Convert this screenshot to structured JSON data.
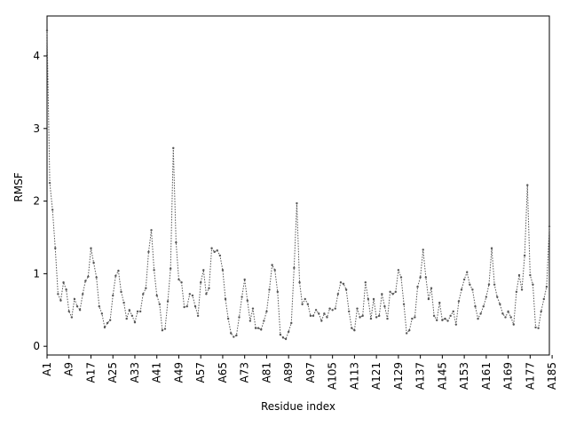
{
  "chart_data": {
    "type": "line",
    "title": "",
    "xlabel": "Residue index",
    "ylabel": "RMSF",
    "ylim": [
      -0.12,
      4.55
    ],
    "yticks": [
      0,
      1,
      2,
      3,
      4
    ],
    "xtick_labels": [
      "A1",
      "A9",
      "A17",
      "A25",
      "A33",
      "A41",
      "A49",
      "A57",
      "A65",
      "A73",
      "A81",
      "A89",
      "A97",
      "A105",
      "A113",
      "A121",
      "A129",
      "A137",
      "A145",
      "A153",
      "A161",
      "A169",
      "A177",
      "A185"
    ],
    "xtick_step": 8,
    "series_color": "#555555",
    "grid": false,
    "legend": "none",
    "series": [
      {
        "values": [
          4.35,
          2.25,
          1.88,
          1.35,
          0.72,
          0.63,
          0.88,
          0.78,
          0.48,
          0.4,
          0.65,
          0.55,
          0.5,
          0.72,
          0.9,
          0.96,
          1.35,
          1.15,
          0.95,
          0.55,
          0.45,
          0.26,
          0.32,
          0.36,
          0.7,
          0.97,
          1.04,
          0.75,
          0.6,
          0.38,
          0.5,
          0.42,
          0.33,
          0.48,
          0.48,
          0.72,
          0.8,
          1.3,
          1.6,
          1.05,
          0.7,
          0.58,
          0.22,
          0.24,
          0.62,
          1.07,
          2.73,
          1.43,
          0.92,
          0.88,
          0.54,
          0.55,
          0.72,
          0.7,
          0.55,
          0.42,
          0.88,
          1.05,
          0.72,
          0.8,
          1.35,
          1.3,
          1.32,
          1.25,
          1.05,
          0.65,
          0.38,
          0.18,
          0.13,
          0.15,
          0.4,
          0.68,
          0.92,
          0.63,
          0.35,
          0.52,
          0.25,
          0.25,
          0.23,
          0.35,
          0.48,
          0.78,
          1.12,
          1.05,
          0.75,
          0.16,
          0.12,
          0.1,
          0.2,
          0.32,
          1.08,
          1.97,
          0.88,
          0.58,
          0.65,
          0.58,
          0.42,
          0.42,
          0.5,
          0.45,
          0.35,
          0.45,
          0.4,
          0.52,
          0.5,
          0.52,
          0.72,
          0.88,
          0.86,
          0.78,
          0.48,
          0.25,
          0.22,
          0.52,
          0.4,
          0.42,
          0.88,
          0.65,
          0.38,
          0.65,
          0.4,
          0.42,
          0.72,
          0.55,
          0.38,
          0.75,
          0.72,
          0.75,
          1.05,
          0.95,
          0.58,
          0.18,
          0.22,
          0.38,
          0.4,
          0.82,
          0.95,
          1.33,
          0.95,
          0.65,
          0.8,
          0.42,
          0.36,
          0.6,
          0.36,
          0.38,
          0.35,
          0.42,
          0.48,
          0.3,
          0.62,
          0.78,
          0.92,
          1.02,
          0.85,
          0.78,
          0.55,
          0.38,
          0.45,
          0.55,
          0.68,
          0.85,
          1.35,
          0.85,
          0.68,
          0.58,
          0.45,
          0.4,
          0.48,
          0.4,
          0.3,
          0.75,
          0.98,
          0.78,
          1.25,
          2.22,
          0.98,
          0.85,
          0.26,
          0.25,
          0.48,
          0.65,
          0.82,
          1.65
        ]
      }
    ]
  }
}
